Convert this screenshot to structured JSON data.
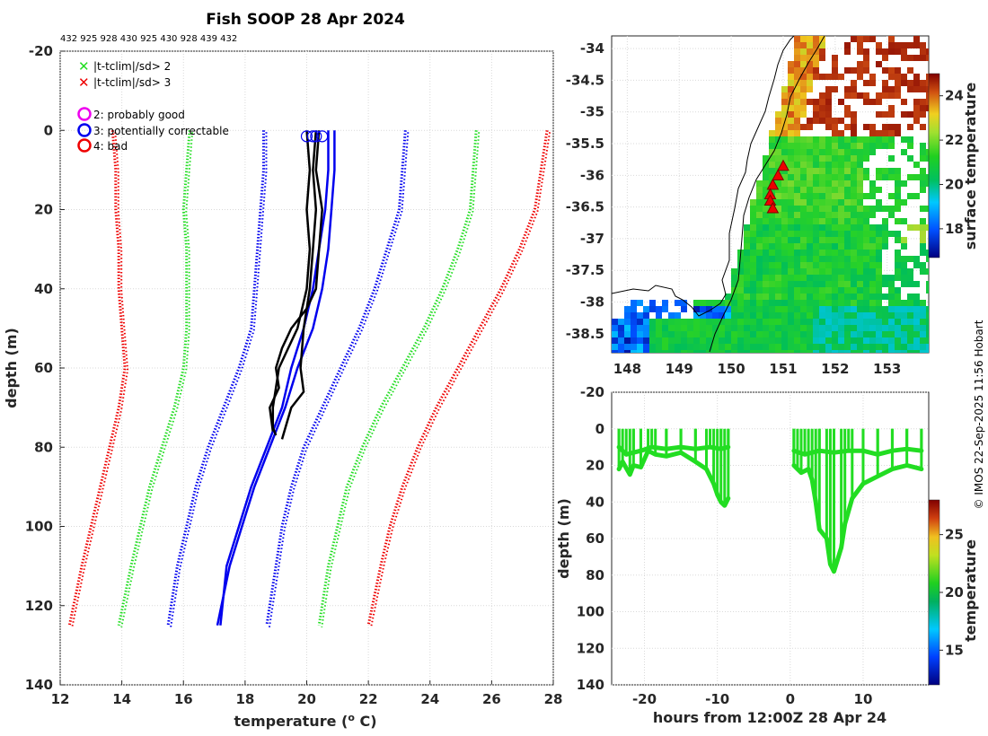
{
  "header": {
    "title": "Fish SOOP 28 Apr 2024",
    "id_line": "432 925 928 430 925 430 928 439 432"
  },
  "legend": {
    "flags": [
      {
        "marker": "x",
        "color": "#22dd22",
        "label": "|t-tclim|/sd> 2"
      },
      {
        "marker": "x",
        "color": "#ee0000",
        "label": "|t-tclim|/sd> 3"
      }
    ],
    "qc": [
      {
        "marker": "o",
        "color": "#ee00ee",
        "label": "2: probably good"
      },
      {
        "marker": "o",
        "color": "#0000ee",
        "label": "3: potentially correctable"
      },
      {
        "marker": "o",
        "color": "#ee0000",
        "label": "4: bad"
      }
    ]
  },
  "copyright": "© IMOS 22-Sep-2025 11:56 Hobart",
  "chart_data": [
    {
      "id": "profiles",
      "type": "line",
      "xlabel": "temperature (",
      "xlabel_sup": "o",
      "xlabel_tail": " C)",
      "ylabel": "depth (m)",
      "xlim": [
        12,
        28
      ],
      "ylim": [
        -20,
        140
      ],
      "y_reversed": true,
      "xticks": [
        12,
        14,
        16,
        18,
        20,
        22,
        24,
        26,
        28
      ],
      "yticks": [
        -20,
        0,
        20,
        40,
        60,
        80,
        100,
        120,
        140
      ],
      "grid": true,
      "series": [
        {
          "name": "climatology -3sd",
          "color": "#ee0000",
          "style": "dotted",
          "depth": [
            0,
            10,
            20,
            30,
            40,
            50,
            60,
            70,
            80,
            90,
            100,
            110,
            125
          ],
          "temp": [
            13.7,
            13.8,
            13.8,
            13.9,
            13.9,
            14.0,
            14.1,
            13.9,
            13.6,
            13.3,
            13.0,
            12.7,
            12.3
          ]
        },
        {
          "name": "climatology -2sd",
          "color": "#22dd22",
          "style": "dotted",
          "depth": [
            0,
            10,
            20,
            30,
            40,
            50,
            60,
            70,
            80,
            90,
            100,
            110,
            125
          ],
          "temp": [
            16.2,
            16.1,
            16.0,
            16.1,
            16.1,
            16.1,
            16.0,
            15.7,
            15.3,
            14.9,
            14.6,
            14.3,
            13.9
          ]
        },
        {
          "name": "climatology -1sd",
          "color": "#0000ee",
          "style": "dotted",
          "depth": [
            0,
            10,
            20,
            30,
            40,
            50,
            60,
            70,
            80,
            90,
            100,
            110,
            125
          ],
          "temp": [
            18.6,
            18.6,
            18.5,
            18.4,
            18.3,
            18.2,
            17.8,
            17.3,
            16.8,
            16.4,
            16.1,
            15.8,
            15.5
          ]
        },
        {
          "name": "climatology +1sd",
          "color": "#0000ee",
          "style": "dotted",
          "depth": [
            0,
            10,
            20,
            30,
            40,
            50,
            60,
            70,
            80,
            90,
            100,
            110,
            125
          ],
          "temp": [
            23.2,
            23.1,
            23.0,
            22.6,
            22.2,
            21.7,
            21.1,
            20.5,
            19.9,
            19.5,
            19.2,
            19.0,
            18.7
          ]
        },
        {
          "name": "climatology +2sd",
          "color": "#22dd22",
          "style": "dotted",
          "depth": [
            0,
            10,
            20,
            30,
            40,
            50,
            60,
            70,
            80,
            90,
            100,
            110,
            125
          ],
          "temp": [
            25.5,
            25.4,
            25.3,
            24.9,
            24.4,
            23.8,
            23.1,
            22.4,
            21.8,
            21.3,
            21.0,
            20.7,
            20.4
          ]
        },
        {
          "name": "climatology +3sd",
          "color": "#ee0000",
          "style": "dotted",
          "depth": [
            0,
            10,
            20,
            30,
            40,
            50,
            60,
            70,
            80,
            90,
            100,
            110,
            125
          ],
          "temp": [
            27.8,
            27.6,
            27.4,
            26.9,
            26.3,
            25.6,
            24.9,
            24.2,
            23.6,
            23.1,
            22.7,
            22.4,
            22.0
          ]
        },
        {
          "name": "profile A",
          "color": "#0000ee",
          "style": "solid",
          "depth": [
            0,
            10,
            20,
            30,
            40,
            50,
            60,
            70,
            80,
            90,
            100,
            110,
            125
          ],
          "temp": [
            20.9,
            20.9,
            20.8,
            20.7,
            20.5,
            20.2,
            19.7,
            19.3,
            18.8,
            18.3,
            17.9,
            17.5,
            17.1
          ]
        },
        {
          "name": "profile B",
          "color": "#0000ee",
          "style": "solid",
          "depth": [
            0,
            10,
            20,
            30,
            40,
            50,
            60,
            70,
            80,
            90,
            100,
            110,
            125
          ],
          "temp": [
            20.7,
            20.7,
            20.6,
            20.4,
            20.2,
            19.9,
            19.5,
            19.2,
            18.7,
            18.2,
            17.8,
            17.4,
            17.2
          ]
        },
        {
          "name": "profile C",
          "color": "#000000",
          "style": "solid",
          "depth": [
            0,
            10,
            20,
            30,
            40,
            50,
            55,
            60,
            65,
            70,
            75,
            77
          ],
          "temp": [
            20.0,
            20.1,
            20.0,
            20.1,
            20.0,
            19.7,
            19.4,
            19.1,
            19.0,
            18.9,
            18.9,
            19.0
          ]
        },
        {
          "name": "profile D",
          "color": "#000000",
          "style": "solid",
          "depth": [
            0,
            10,
            20,
            30,
            40,
            45,
            50,
            55,
            60,
            65,
            70,
            76
          ],
          "temp": [
            20.4,
            20.3,
            20.5,
            20.4,
            20.3,
            20.0,
            19.5,
            19.2,
            19.0,
            19.1,
            18.8,
            18.9
          ]
        },
        {
          "name": "profile E",
          "color": "#000000",
          "style": "solid",
          "depth": [
            0,
            10,
            20,
            30,
            40,
            50,
            60,
            66,
            70,
            78
          ],
          "temp": [
            20.3,
            20.2,
            20.3,
            20.2,
            20.1,
            19.9,
            19.8,
            19.9,
            19.5,
            19.2
          ]
        }
      ],
      "qc_markers": [
        {
          "label": "3: potentially correctable",
          "temp": [
            20.0,
            20.2,
            20.3,
            20.5
          ],
          "depth": [
            1.5,
            1.5,
            1.5,
            1.5
          ]
        }
      ]
    },
    {
      "id": "sst_map",
      "type": "heatmap",
      "colorbar_label": "surface temperature",
      "colorbar_ticks": [
        18,
        20,
        22,
        24
      ],
      "clim": [
        16.7,
        25
      ],
      "xlim": [
        147.7,
        153.8
      ],
      "ylim": [
        -38.8,
        -33.8
      ],
      "xticks": [
        148,
        149,
        150,
        151,
        152,
        153
      ],
      "yticks": [
        -34,
        -34.5,
        -35,
        -35.5,
        -36,
        -36.5,
        -37,
        -37.5,
        -38,
        -38.5
      ],
      "stations": [
        {
          "lon": 151.0,
          "lat": -35.85
        },
        {
          "lon": 150.9,
          "lat": -36.0
        },
        {
          "lon": 150.8,
          "lat": -36.15
        },
        {
          "lon": 150.75,
          "lat": -36.3
        },
        {
          "lon": 150.75,
          "lat": -36.4
        },
        {
          "lon": 150.8,
          "lat": -36.52
        }
      ]
    },
    {
      "id": "depth_time",
      "type": "scatter",
      "xlabel": "hours from 12:00Z 28 Apr 24",
      "ylabel": "depth (m)",
      "colorbar_label": "temperature",
      "colorbar_ticks": [
        15,
        20,
        25
      ],
      "clim": [
        12,
        28
      ],
      "xlim": [
        -24.5,
        19
      ],
      "ylim": [
        -20,
        140
      ],
      "y_reversed": true,
      "xticks": [
        -20,
        -10,
        0,
        10
      ],
      "yticks": [
        -20,
        0,
        20,
        40,
        60,
        80,
        100,
        120,
        140
      ],
      "series": [
        {
          "name": "track 1",
          "color": "#22dd22",
          "x": [
            -23.5,
            -23,
            -22,
            -21.5,
            -20.5,
            -19.5,
            -18.5,
            -17,
            -15,
            -13,
            -11.5,
            -10.5,
            -10,
            -9.5,
            -9,
            -8.5
          ],
          "y": [
            22,
            18,
            25,
            20,
            21,
            12,
            14,
            15,
            13,
            18,
            22,
            30,
            36,
            40,
            42,
            38
          ]
        },
        {
          "name": "track 2",
          "color": "#22dd22",
          "x": [
            -23.5,
            -22.5,
            -21.5,
            -20.5,
            -19,
            -17,
            -15,
            -13,
            -11,
            -9.5,
            -8.5
          ],
          "y": [
            10,
            14,
            13,
            12,
            10,
            11,
            10,
            11,
            10,
            11,
            10
          ]
        },
        {
          "name": "track 3",
          "color": "#22dd22",
          "x": [
            0.5,
            1,
            1.5,
            2.5,
            3,
            3.5,
            4,
            5,
            5.5,
            6,
            7,
            7.5,
            8.5,
            10,
            12,
            14,
            16,
            18
          ],
          "y": [
            20,
            22,
            24,
            22,
            28,
            40,
            55,
            60,
            74,
            78,
            65,
            52,
            38,
            30,
            26,
            22,
            20,
            22
          ]
        },
        {
          "name": "track 4",
          "color": "#22dd22",
          "x": [
            0.5,
            2,
            4,
            6,
            8,
            10,
            12,
            14,
            16,
            18
          ],
          "y": [
            12,
            14,
            12,
            13,
            12,
            12,
            14,
            12,
            11,
            12
          ]
        }
      ]
    }
  ]
}
